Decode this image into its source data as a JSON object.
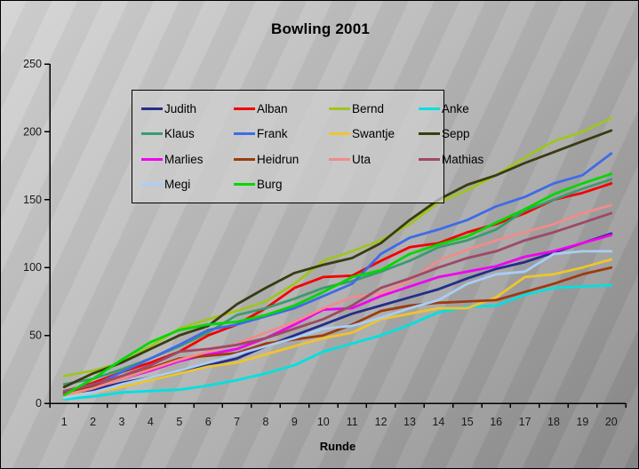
{
  "window": {
    "background_top_left": "#d4d4d4",
    "background_bottom_right": "#8a8a8a",
    "border_color": "#000000"
  },
  "chart_data": {
    "type": "line",
    "title": "Bowling 2001",
    "xlabel": "Runde",
    "ylabel": "",
    "ylim": [
      0,
      250
    ],
    "y_ticks": [
      0,
      50,
      100,
      150,
      200,
      250
    ],
    "categories": [
      "1",
      "2",
      "3",
      "4",
      "5",
      "6",
      "7",
      "8",
      "9",
      "10",
      "11",
      "12",
      "13",
      "14",
      "15",
      "16",
      "17",
      "18",
      "19",
      "20"
    ],
    "grid": false,
    "legend_position": "inside-top-left",
    "legend_columns": 4,
    "axis_color": "#000000",
    "tick_label_color": "#1a1a1a",
    "series": [
      {
        "name": "Judith",
        "color": "#232D8C",
        "values": [
          7,
          10,
          15,
          19,
          23,
          28,
          33,
          42,
          50,
          58,
          66,
          72,
          78,
          84,
          92,
          99,
          104,
          111,
          118,
          125
        ]
      },
      {
        "name": "Alban",
        "color": "#F40000",
        "values": [
          8,
          15,
          23,
          30,
          38,
          50,
          58,
          70,
          85,
          93,
          94,
          105,
          115,
          118,
          126,
          132,
          140,
          150,
          155,
          162
        ]
      },
      {
        "name": "Bernd",
        "color": "#9FC520",
        "values": [
          20,
          24,
          30,
          42,
          55,
          62,
          68,
          75,
          88,
          105,
          112,
          120,
          132,
          148,
          157,
          168,
          181,
          193,
          200,
          210
        ]
      },
      {
        "name": "Anke",
        "color": "#00E0E0",
        "values": [
          3,
          5,
          8,
          9,
          10,
          13,
          17,
          22,
          28,
          38,
          44,
          50,
          58,
          67,
          71,
          72,
          80,
          85,
          86,
          87
        ]
      },
      {
        "name": "Klaus",
        "color": "#3A9B70",
        "values": [
          14,
          18,
          25,
          33,
          42,
          52,
          65,
          70,
          77,
          85,
          90,
          97,
          105,
          115,
          120,
          128,
          142,
          150,
          158,
          165
        ]
      },
      {
        "name": "Frank",
        "color": "#3E6BE8",
        "values": [
          5,
          13,
          23,
          33,
          43,
          54,
          58,
          64,
          70,
          79,
          88,
          110,
          122,
          128,
          135,
          145,
          152,
          162,
          168,
          184
        ]
      },
      {
        "name": "Swantje",
        "color": "#EFC42D",
        "values": [
          5,
          8,
          12,
          17,
          22,
          27,
          30,
          36,
          42,
          48,
          52,
          62,
          66,
          70,
          70,
          78,
          93,
          95,
          100,
          106
        ]
      },
      {
        "name": "Sepp",
        "color": "#3B3B12",
        "values": [
          12,
          22,
          30,
          40,
          50,
          57,
          73,
          85,
          96,
          102,
          107,
          118,
          135,
          150,
          161,
          168,
          177,
          185,
          193,
          201
        ]
      },
      {
        "name": "Marlies",
        "color": "#F000F0",
        "values": [
          8,
          12,
          18,
          24,
          31,
          36,
          40,
          48,
          58,
          69,
          70,
          79,
          86,
          93,
          97,
          101,
          108,
          112,
          118,
          124
        ]
      },
      {
        "name": "Heidrun",
        "color": "#9E3A10",
        "values": [
          7,
          12,
          18,
          26,
          33,
          35,
          37,
          44,
          47,
          50,
          58,
          68,
          72,
          74,
          75,
          76,
          82,
          88,
          95,
          100
        ]
      },
      {
        "name": "Uta",
        "color": "#F28B8B",
        "values": [
          6,
          11,
          18,
          25,
          32,
          38,
          44,
          52,
          60,
          70,
          78,
          81,
          90,
          105,
          113,
          120,
          126,
          132,
          140,
          146
        ]
      },
      {
        "name": "Mathias",
        "color": "#9E4966",
        "values": [
          9,
          14,
          20,
          28,
          38,
          40,
          43,
          48,
          55,
          62,
          72,
          85,
          92,
          100,
          107,
          112,
          120,
          126,
          133,
          140
        ]
      },
      {
        "name": "Megi",
        "color": "#A9CEF2",
        "values": [
          4,
          8,
          14,
          19,
          24,
          30,
          36,
          42,
          48,
          55,
          57,
          63,
          70,
          76,
          88,
          95,
          97,
          110,
          112,
          112
        ]
      },
      {
        "name": "Burg",
        "color": "#00D800",
        "values": [
          6,
          18,
          32,
          45,
          54,
          58,
          60,
          65,
          72,
          82,
          93,
          98,
          110,
          117,
          123,
          133,
          143,
          154,
          162,
          169
        ]
      }
    ]
  }
}
